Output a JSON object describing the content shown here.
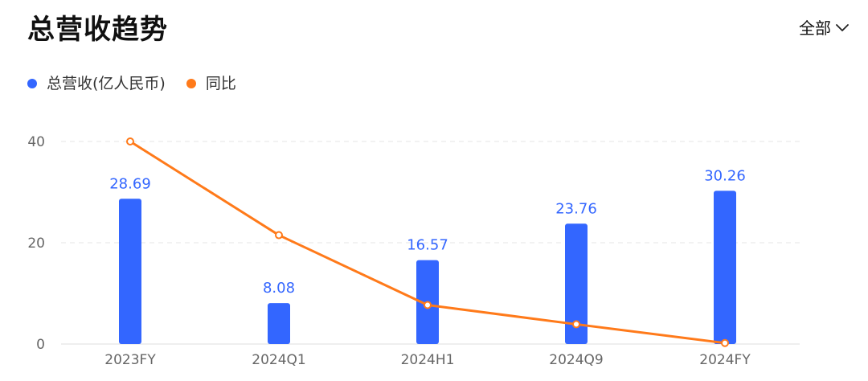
{
  "header": {
    "title": "总营收趋势",
    "filter_label": "全部"
  },
  "legend": [
    {
      "label": "总营收(亿人民币)",
      "color": "#3366ff"
    },
    {
      "label": "同比",
      "color": "#ff7a1a"
    }
  ],
  "chart_data": {
    "type": "bar",
    "categories": [
      "2023FY",
      "2024Q1",
      "2024H1",
      "2024Q9",
      "2024FY"
    ],
    "series": [
      {
        "name": "总营收(亿人民币)",
        "type": "bar",
        "color": "#3366ff",
        "values": [
          28.69,
          8.08,
          16.57,
          23.76,
          30.26
        ]
      },
      {
        "name": "同比",
        "type": "line",
        "color": "#ff7a1a",
        "values": [
          40,
          21.5,
          7.7,
          3.9,
          0.2
        ]
      }
    ],
    "y_ticks": [
      "0",
      "20",
      "40"
    ],
    "ylim": [
      0,
      40
    ],
    "grid": true,
    "legend_position": "top-left"
  }
}
